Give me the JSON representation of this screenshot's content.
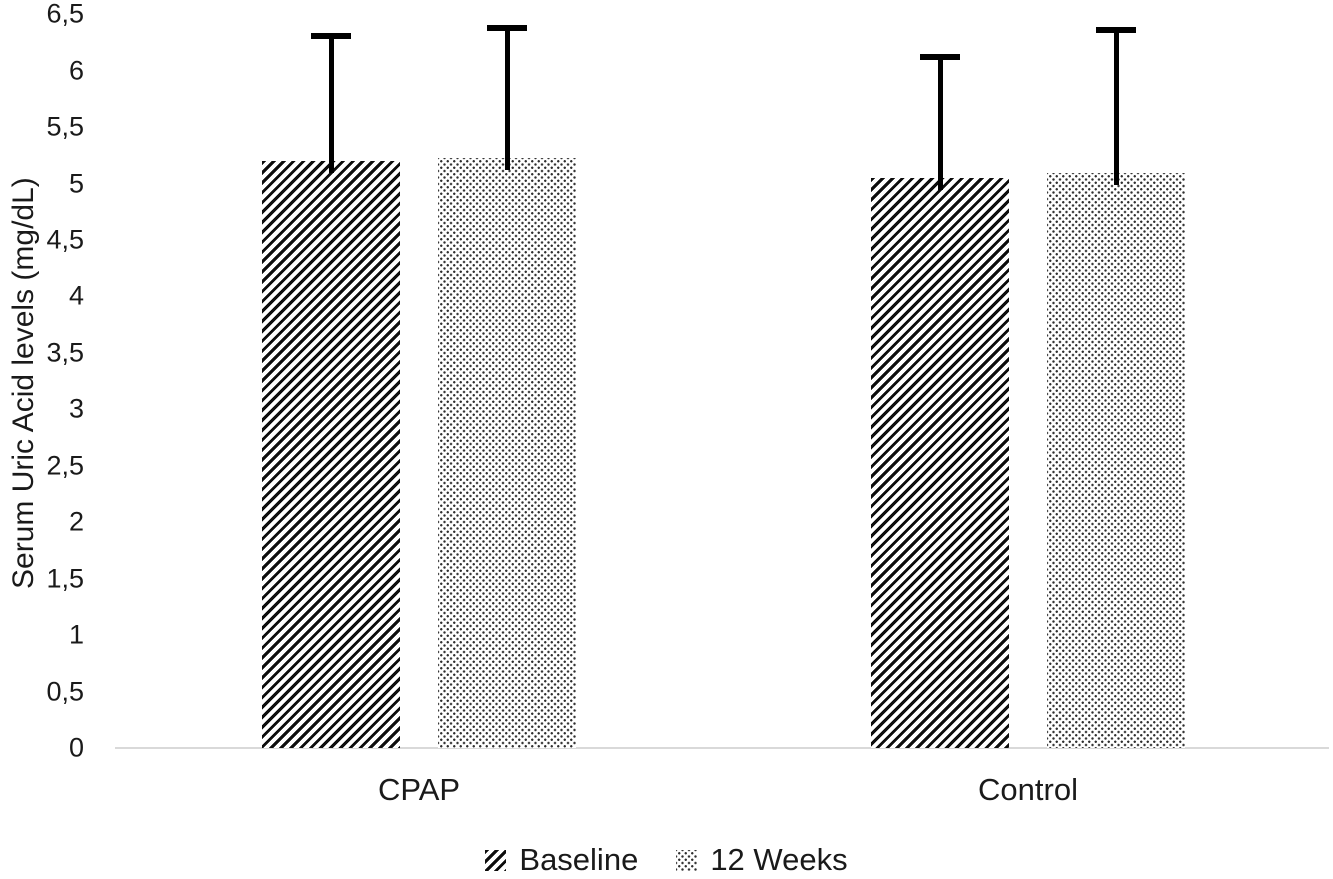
{
  "chart_data": {
    "type": "bar",
    "title": "",
    "xlabel": "",
    "ylabel": "Serum Uric Acid levels (mg/dL)",
    "categories": [
      "CPAP",
      "Control"
    ],
    "series": [
      {
        "name": "Baseline",
        "pattern": "diagonal-hatch",
        "values": [
          5.2,
          5.05
        ],
        "error_upper": [
          6.31,
          6.12
        ]
      },
      {
        "name": "12 Weeks",
        "pattern": "dotted",
        "values": [
          5.23,
          5.09
        ],
        "error_upper": [
          6.38,
          6.36
        ]
      }
    ],
    "ylim": [
      0,
      6.5
    ],
    "ytick_step": 0.5,
    "ytick_labels": [
      "0",
      "0,5",
      "1",
      "1,5",
      "2",
      "2,5",
      "3",
      "3,5",
      "4",
      "4,5",
      "5",
      "5,5",
      "6",
      "6,5"
    ],
    "decimal_separator": ",",
    "grid": false,
    "legend_position": "bottom-center",
    "colors": {
      "bar_pattern": "#000000",
      "error_bar": "#000000",
      "axis_line": "#d9d9d9",
      "text": "#1a1a1a",
      "background": "#ffffff"
    }
  }
}
